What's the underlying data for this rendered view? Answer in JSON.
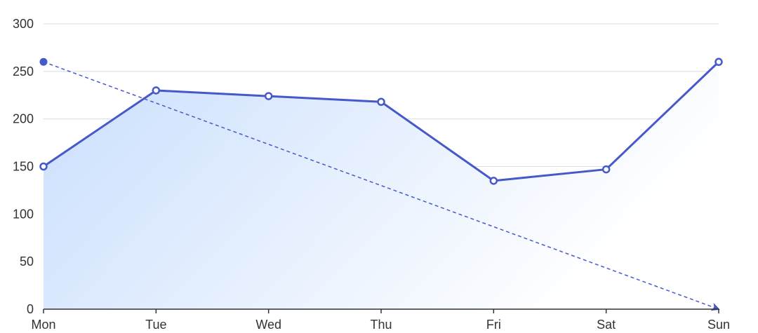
{
  "chart_data": {
    "type": "line",
    "categories": [
      "Mon",
      "Tue",
      "Wed",
      "Thu",
      "Fri",
      "Sat",
      "Sun"
    ],
    "series": [
      {
        "values": [
          150,
          230,
          224,
          218,
          135,
          147,
          260
        ],
        "color": "#4659c9",
        "area": true,
        "area_gradient": [
          "#c9defd",
          "#ffffff"
        ]
      }
    ],
    "annotation_arrow": {
      "from": {
        "x": "Mon",
        "y": 260
      },
      "to": {
        "x": "Sun",
        "y": 0
      },
      "style": "dashed",
      "color": "#4659c9"
    },
    "y_ticks": [
      0,
      50,
      100,
      150,
      200,
      250,
      300
    ],
    "ylim": [
      0,
      300
    ],
    "grid": true,
    "title": "",
    "xlabel": "",
    "ylabel": ""
  }
}
